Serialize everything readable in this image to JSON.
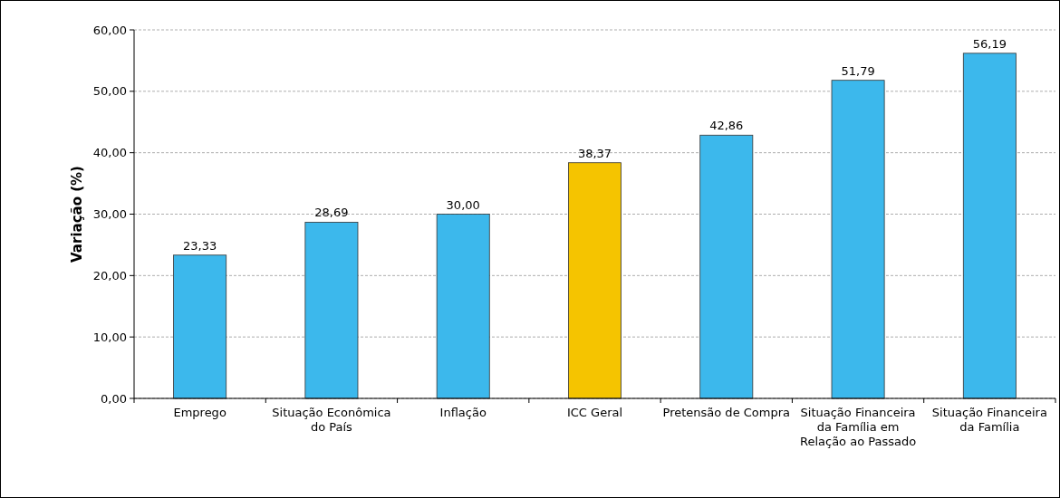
{
  "chart_data": {
    "type": "bar",
    "ylabel": "Variação (%)",
    "categories": [
      "Emprego",
      "Situação Econômica do País",
      "Inflação",
      "ICC Geral",
      "Pretensão de Compra",
      "Situação Financeira da Família em Relação ao Passado",
      "Situação Financeira da Família"
    ],
    "values": [
      23.33,
      28.69,
      30.0,
      38.37,
      42.86,
      51.79,
      56.19
    ],
    "value_labels": [
      "23,33",
      "28,69",
      "30,00",
      "38,37",
      "42,86",
      "51,79",
      "56,19"
    ],
    "colors": [
      "#3cb8ec",
      "#3cb8ec",
      "#3cb8ec",
      "#f5c400",
      "#3cb8ec",
      "#3cb8ec",
      "#3cb8ec"
    ],
    "ylim": [
      0,
      60
    ],
    "yticks": [
      {
        "value": 0,
        "label": "0,00"
      },
      {
        "value": 10,
        "label": "10,00"
      },
      {
        "value": 20,
        "label": "20,00"
      },
      {
        "value": 30,
        "label": "30,00"
      },
      {
        "value": 40,
        "label": "40,00"
      },
      {
        "value": 50,
        "label": "50,00"
      },
      {
        "value": 60,
        "label": "60,00"
      }
    ],
    "grid": "y"
  }
}
